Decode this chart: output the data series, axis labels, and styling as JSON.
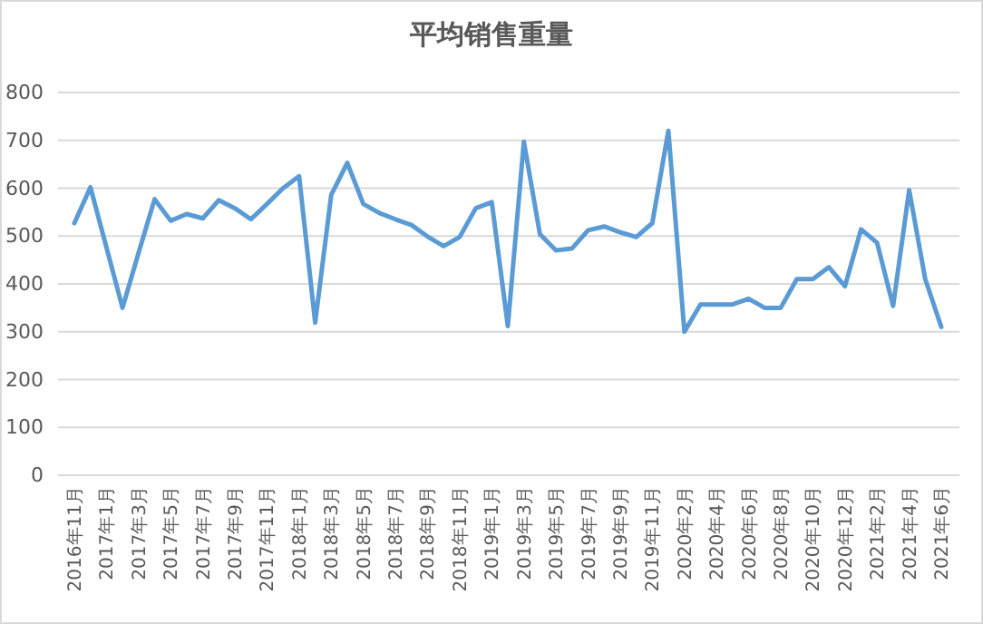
{
  "chart_data": {
    "type": "line",
    "title": "平均销售重量",
    "categories": [
      "2016年11月",
      null,
      "2017年1月",
      null,
      "2017年3月",
      null,
      "2017年5月",
      null,
      "2017年7月",
      null,
      "2017年9月",
      null,
      "2017年11月",
      null,
      "2018年1月",
      null,
      "2018年3月",
      null,
      "2018年5月",
      null,
      "2018年7月",
      null,
      "2018年9月",
      null,
      "2018年11月",
      null,
      "2019年1月",
      null,
      "2019年3月",
      null,
      "2019年5月",
      null,
      "2019年7月",
      null,
      "2019年9月",
      null,
      "2019年11月",
      null,
      "2020年2月",
      null,
      "2020年4月",
      null,
      "2020年6月",
      null,
      "2020年8月",
      null,
      "2020年10月",
      null,
      "2020年12月",
      null,
      "2021年2月",
      null,
      "2021年4月",
      null,
      "2021年6月"
    ],
    "series": [
      {
        "color": "#5b9bd5",
        "values": [
          527,
          602,
          476,
          350,
          465,
          577,
          532,
          546,
          537,
          575,
          558,
          535,
          567,
          600,
          625,
          319,
          586,
          653,
          567,
          548,
          535,
          523,
          499,
          479,
          498,
          558,
          571,
          312,
          697,
          504,
          470,
          474,
          512,
          520,
          508,
          498,
          527,
          720,
          300,
          357,
          357,
          357,
          369,
          350,
          350,
          410,
          410,
          435,
          395,
          514,
          486,
          354,
          596,
          410,
          310
        ]
      }
    ],
    "ylim": [
      0,
      800
    ],
    "yticks": [
      0,
      100,
      200,
      300,
      400,
      500,
      600,
      700,
      800
    ],
    "grid": "y",
    "legend": false,
    "marker": "none",
    "line_style": "solid"
  }
}
